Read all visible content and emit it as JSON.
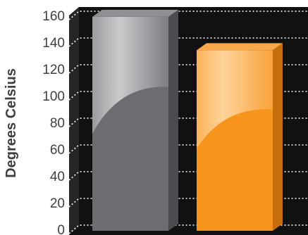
{
  "chart_data": {
    "type": "bar",
    "categories": [
      "",
      ""
    ],
    "values": [
      159,
      134
    ],
    "colors": [
      "#6b6d70",
      "#f7941d"
    ],
    "title": "",
    "xlabel": "",
    "ylabel": "Degrees Celsius",
    "ylim": [
      0,
      160
    ],
    "yticks": [
      "0",
      "20",
      "40",
      "60",
      "80",
      "100",
      "120",
      "140",
      "160"
    ],
    "grid": true,
    "background_color": "#111111",
    "grid_color": "#ffffff"
  }
}
